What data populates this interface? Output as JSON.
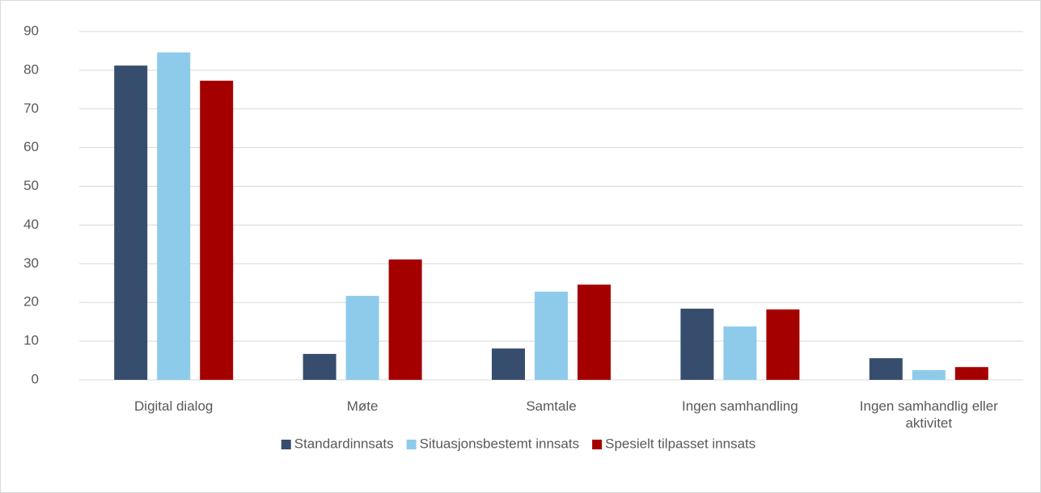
{
  "chart_data": {
    "type": "bar",
    "categories": [
      "Digital dialog",
      "Møte",
      "Samtale",
      "Ingen samhandling",
      "Ingen samhandlig eller aktivitet"
    ],
    "series": [
      {
        "name": "Standardinnsats",
        "color": "#374d6e",
        "values": [
          81.2,
          6.7,
          8.1,
          18.4,
          5.6
        ]
      },
      {
        "name": "Situasjonsbestemt innsats",
        "color": "#8ecbeb",
        "values": [
          84.6,
          21.7,
          22.8,
          13.8,
          2.5
        ]
      },
      {
        "name": "Spesielt tilpasset innsats",
        "color": "#a50000",
        "values": [
          77.3,
          31.1,
          24.6,
          18.2,
          3.3
        ]
      }
    ],
    "ylim": [
      0,
      90
    ],
    "yticks": [
      0,
      10,
      20,
      30,
      40,
      50,
      60,
      70,
      80,
      90
    ],
    "grid": true,
    "legend": "bottom"
  }
}
